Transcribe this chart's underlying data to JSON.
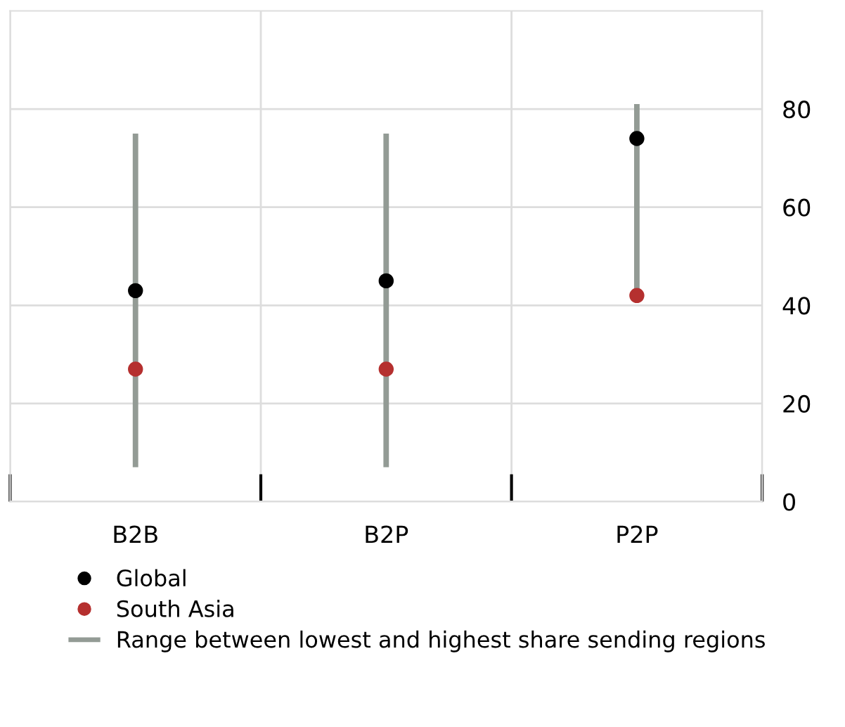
{
  "chart_data": {
    "type": "scatter",
    "categories": [
      "B2B",
      "B2P",
      "P2P"
    ],
    "series": [
      {
        "name": "Global",
        "color": "#000000",
        "values": [
          43,
          45,
          74
        ]
      },
      {
        "name": "South Asia",
        "color": "#b5302f",
        "values": [
          27,
          27,
          42
        ]
      },
      {
        "name": "Range between lowest and highest share sending regions",
        "type": "bar",
        "color": "#939b95",
        "base": [
          7,
          7,
          42
        ],
        "values": [
          68,
          68,
          39
        ]
      }
    ],
    "ylim": [
      0,
      100
    ],
    "yticks": [
      0,
      20,
      40,
      60,
      80
    ],
    "grid": true,
    "legend": "bottom",
    "marker": "circle"
  }
}
